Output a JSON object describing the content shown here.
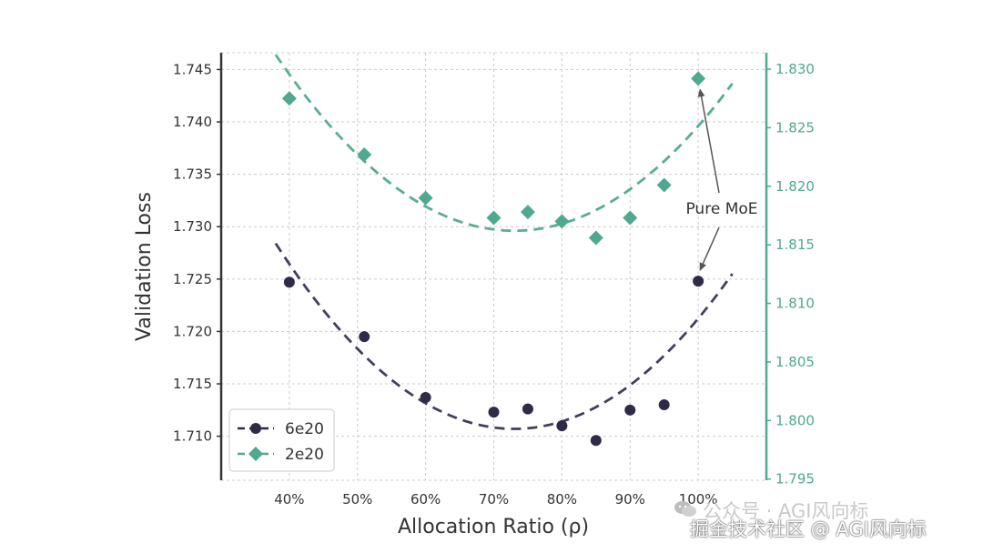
{
  "colors": {
    "series_dark": "#2d2a4a",
    "series_teal": "#4fa890",
    "grid": "#cccccc",
    "text": "#333333"
  },
  "chart_data": {
    "type": "scatter",
    "xlabel": "Allocation Ratio (ρ)",
    "ylabel": "Validation Loss",
    "x_range": [
      0.3,
      1.1
    ],
    "x_ticks": [
      0.4,
      0.5,
      0.6,
      0.7,
      0.8,
      0.9,
      1.0
    ],
    "x_tick_labels": [
      "40%",
      "50%",
      "60%",
      "70%",
      "80%",
      "90%",
      "100%"
    ],
    "ylim_left": [
      1.7058,
      1.7466
    ],
    "y_ticks_left": [
      1.71,
      1.715,
      1.72,
      1.725,
      1.73,
      1.735,
      1.74,
      1.745
    ],
    "y_tick_labels_left": [
      "1.710",
      "1.715",
      "1.720",
      "1.725",
      "1.730",
      "1.735",
      "1.740",
      "1.745"
    ],
    "ylim_right": [
      1.7949,
      1.8314
    ],
    "y_ticks_right": [
      1.795,
      1.8,
      1.805,
      1.81,
      1.815,
      1.82,
      1.825,
      1.83
    ],
    "y_tick_labels_right": [
      "1.795",
      "1.800",
      "1.805",
      "1.810",
      "1.815",
      "1.820",
      "1.825",
      "1.830"
    ],
    "grid": true,
    "legend_position": "bottom-left",
    "series": [
      {
        "name": "6e20",
        "axis": "left",
        "color": "#2d2a4a",
        "marker": "circle",
        "x": [
          0.4,
          0.51,
          0.6,
          0.7,
          0.75,
          0.8,
          0.85,
          0.9,
          0.95,
          1.0
        ],
        "y": [
          1.7247,
          1.7195,
          1.7137,
          1.7123,
          1.7126,
          1.711,
          1.7096,
          1.7125,
          1.713,
          1.7248
        ],
        "fit": {
          "x_start": 0.38,
          "x_end": 1.05,
          "vertex_x": 0.73,
          "vertex_y": 1.7107,
          "a": 0.1445
        }
      },
      {
        "name": "2e20",
        "axis": "right",
        "color": "#4fa890",
        "marker": "diamond",
        "x": [
          0.4,
          0.51,
          0.6,
          0.7,
          0.75,
          0.8,
          0.85,
          0.9,
          0.95,
          1.0
        ],
        "y": [
          1.8275,
          1.8227,
          1.819,
          1.8173,
          1.8178,
          1.817,
          1.8156,
          1.8173,
          1.8201,
          1.8292
        ],
        "fit": {
          "x_start": 0.38,
          "x_end": 1.05,
          "vertex_x": 0.73,
          "vertex_y": 1.8162,
          "a": 0.1227
        }
      }
    ],
    "annotations": [
      {
        "text": "Pure MoE",
        "targets": [
          {
            "x": 1.0,
            "y": 1.8292,
            "axis": "right"
          },
          {
            "x": 1.0,
            "y": 1.7248,
            "axis": "left"
          }
        ]
      }
    ]
  },
  "watermark": {
    "line1": "公众号 · AGI风向标",
    "line2": "掘金技术社区 @ AGI风向标",
    "icon": "wechat-icon"
  }
}
